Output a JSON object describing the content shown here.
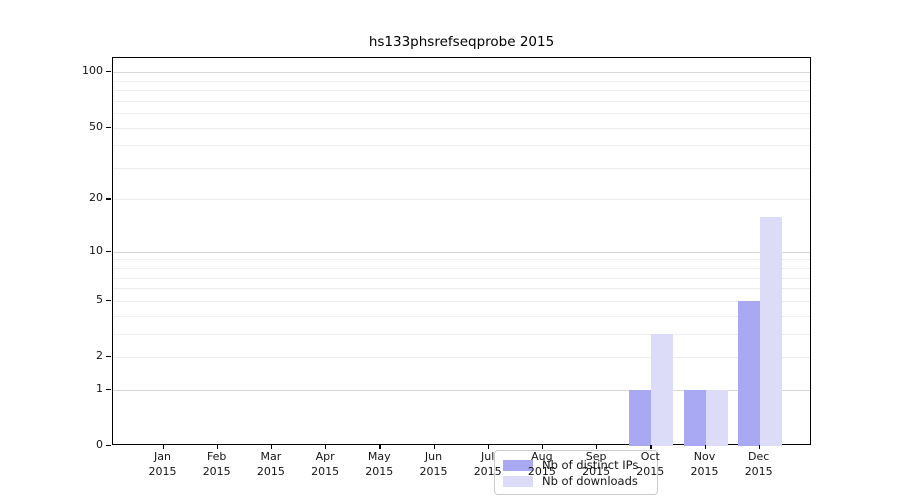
{
  "title": "hs133phsrefseqprobe 2015",
  "chart_data": {
    "type": "bar",
    "title": "hs133phsrefseqprobe 2015",
    "categories": [
      "Jan 2015",
      "Feb 2015",
      "Mar 2015",
      "Apr 2015",
      "May 2015",
      "Jun 2015",
      "Jul 2015",
      "Aug 2015",
      "Sep 2015",
      "Oct 2015",
      "Nov 2015",
      "Dec 2015"
    ],
    "series": [
      {
        "name": "Nb of distinct IPs",
        "color": "#a9a9f3",
        "values": [
          0,
          0,
          0,
          0,
          0,
          0,
          0,
          0,
          0,
          1,
          1,
          5
        ]
      },
      {
        "name": "Nb of downloads",
        "color": "#dcdcf9",
        "values": [
          0,
          0,
          0,
          0,
          0,
          0,
          0,
          0,
          0,
          3,
          1,
          16
        ]
      }
    ],
    "xlabel": "",
    "ylabel": "",
    "yscale": "log1p",
    "ylim": [
      0,
      119
    ],
    "y_ticks": [
      0,
      1,
      2,
      5,
      10,
      20,
      50,
      100
    ],
    "gridlines_minor": [
      2,
      3,
      4,
      5,
      6,
      7,
      8,
      9,
      20,
      30,
      40,
      50,
      60,
      70,
      80,
      90
    ],
    "gridlines_major": [
      1,
      10,
      100
    ],
    "grid": true,
    "legend_position": "lower-center-inside",
    "style": {
      "grid_minor_color": "#ededed",
      "grid_major_color": "#d7d7d7",
      "axis_color": "#000000",
      "text_color": "#141414",
      "background": "#ffffff"
    }
  }
}
